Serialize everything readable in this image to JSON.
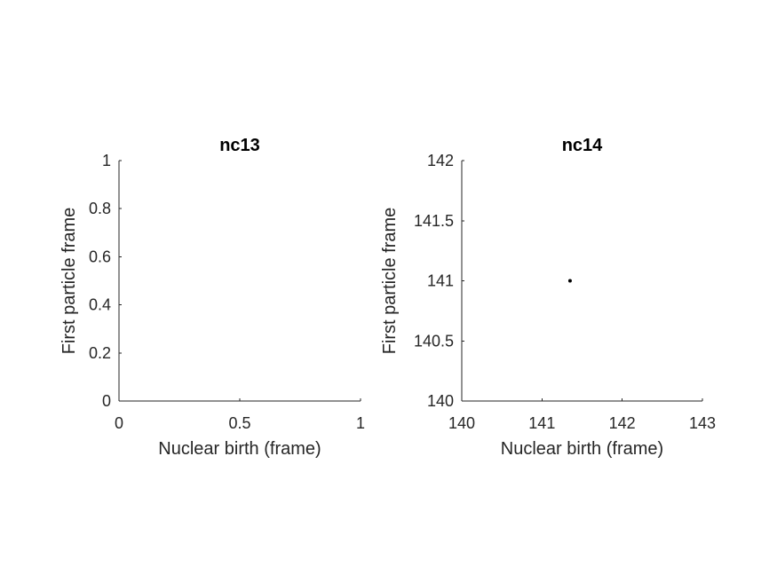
{
  "chart_data": [
    {
      "type": "scatter",
      "title": "nc13",
      "xlabel": "Nuclear birth (frame)",
      "ylabel": "First particle frame",
      "xlim": [
        0,
        1
      ],
      "ylim": [
        0,
        1
      ],
      "xticks": [
        0,
        0.5,
        1
      ],
      "xtick_labels": [
        "0",
        "0.5",
        "1"
      ],
      "yticks": [
        0,
        0.2,
        0.4,
        0.6,
        0.8,
        1
      ],
      "ytick_labels": [
        "0",
        "0.2",
        "0.4",
        "0.6",
        "0.8",
        "1"
      ],
      "grid": false,
      "points": [],
      "color": "#000000"
    },
    {
      "type": "scatter",
      "title": "nc14",
      "xlabel": "Nuclear birth (frame)",
      "ylabel": "First particle frame",
      "xlim": [
        140,
        143
      ],
      "ylim": [
        140,
        142
      ],
      "xticks": [
        140,
        141,
        142,
        143
      ],
      "xtick_labels": [
        "140",
        "141",
        "142",
        "143"
      ],
      "yticks": [
        140,
        140.5,
        141,
        141.5,
        142
      ],
      "ytick_labels": [
        "140",
        "140.5",
        "141",
        "141.5",
        "142"
      ],
      "grid": false,
      "points": [
        {
          "x": 141.35,
          "y": 141
        }
      ],
      "color": "#000000"
    }
  ]
}
